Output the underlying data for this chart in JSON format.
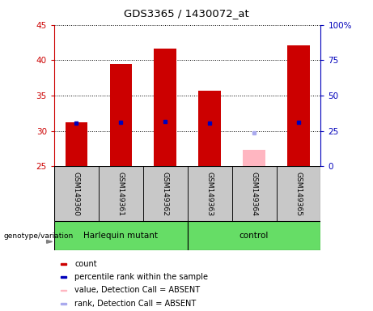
{
  "title": "GDS3365 / 1430072_at",
  "samples": [
    "GSM149360",
    "GSM149361",
    "GSM149362",
    "GSM149363",
    "GSM149364",
    "GSM149365"
  ],
  "count_values": [
    31.2,
    39.5,
    41.7,
    35.7,
    null,
    42.1
  ],
  "rank_values": [
    31.1,
    31.2,
    31.3,
    31.1,
    null,
    31.2
  ],
  "absent_count_value": 27.3,
  "absent_rank_value": 29.7,
  "absent_sample_idx": 4,
  "ylim_left": [
    25,
    45
  ],
  "ylim_right": [
    0,
    100
  ],
  "yticks_left": [
    25,
    30,
    35,
    40,
    45
  ],
  "yticks_right": [
    0,
    25,
    50,
    75,
    100
  ],
  "ytick_labels_right": [
    "0",
    "25",
    "50",
    "75",
    "100%"
  ],
  "bar_color": "#CC0000",
  "rank_color": "#0000BB",
  "absent_bar_color": "#FFB6C1",
  "absent_rank_color": "#AAAAEE",
  "label_area_bg": "#C8C8C8",
  "green_bg": "#66DD66",
  "title_color": "#000000",
  "left_axis_color": "#CC0000",
  "right_axis_color": "#0000BB",
  "legend_items": [
    {
      "color": "#CC0000",
      "label": "count"
    },
    {
      "color": "#0000BB",
      "label": "percentile rank within the sample"
    },
    {
      "color": "#FFB6C1",
      "label": "value, Detection Call = ABSENT"
    },
    {
      "color": "#AAAAEE",
      "label": "rank, Detection Call = ABSENT"
    }
  ]
}
